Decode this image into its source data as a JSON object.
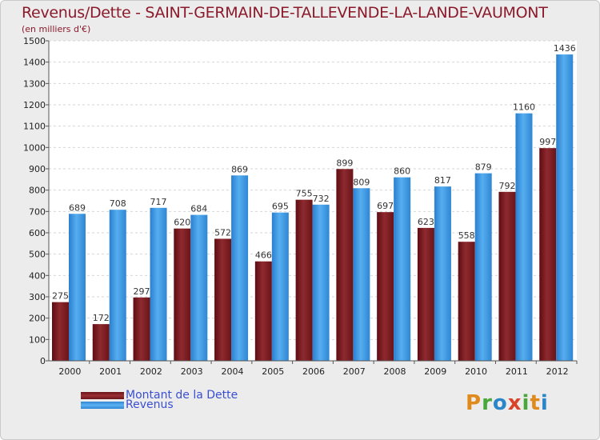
{
  "chart_data": {
    "type": "bar",
    "title": "Revenus/Dette - SAINT-GERMAIN-DE-TALLEVENDE-LA-LANDE-VAUMONT",
    "subtitle": "(en milliers d'€)",
    "categories": [
      "2000",
      "2001",
      "2002",
      "2003",
      "2004",
      "2005",
      "2006",
      "2007",
      "2008",
      "2009",
      "2010",
      "2011",
      "2012"
    ],
    "series": [
      {
        "name": "Montant de la Dette",
        "color": "#8b1a1a",
        "values": [
          275,
          172,
          297,
          620,
          572,
          466,
          755,
          899,
          697,
          623,
          558,
          792,
          997
        ]
      },
      {
        "name": "Revenus",
        "color": "#3d9be6",
        "values": [
          689,
          708,
          717,
          684,
          869,
          695,
          732,
          809,
          860,
          817,
          879,
          1160,
          1436
        ]
      }
    ],
    "ylim": [
      0,
      1500
    ],
    "yticks": [
      0,
      100,
      200,
      300,
      400,
      500,
      600,
      700,
      800,
      900,
      1000,
      1100,
      1200,
      1300,
      1400,
      1500
    ],
    "grid": true,
    "legend_position": "bottom-left"
  },
  "logo": {
    "letters": [
      {
        "ch": "P",
        "color": "#e08a1e"
      },
      {
        "ch": "r",
        "color": "#4aa83a"
      },
      {
        "ch": "o",
        "color": "#2b86c9"
      },
      {
        "ch": "x",
        "color": "#d8432a"
      },
      {
        "ch": "i",
        "color": "#4aa83a"
      },
      {
        "ch": "t",
        "color": "#e08a1e"
      },
      {
        "ch": "i",
        "color": "#2b86c9"
      }
    ]
  }
}
